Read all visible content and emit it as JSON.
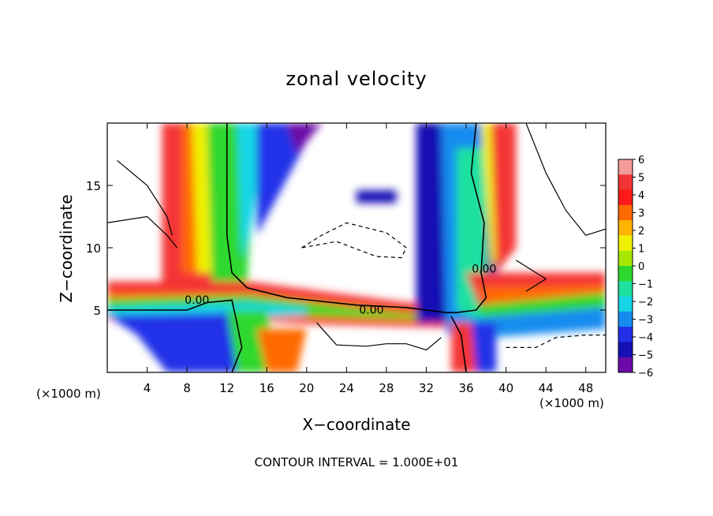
{
  "chart_data": {
    "type": "heatmap",
    "title": "zonal velocity",
    "xlabel": "X−coordinate",
    "ylabel": "Z−coordinate",
    "x_unit_left": "(×1000 m)",
    "x_unit_right": "(×1000 m)",
    "footnote": "CONTOUR INTERVAL = 1.000E+01",
    "xlim": [
      0,
      50
    ],
    "ylim": [
      0,
      20
    ],
    "xticks": [
      4,
      8,
      12,
      16,
      20,
      24,
      28,
      32,
      36,
      40,
      44,
      48
    ],
    "yticks": [
      5,
      10,
      15
    ],
    "colorbar": {
      "ticks": [
        6,
        5,
        4,
        3,
        2,
        1,
        0,
        -1,
        -2,
        -3,
        -4,
        -5,
        -6
      ],
      "tick_labels": [
        "6",
        "5",
        "4",
        "3",
        "2",
        "1",
        "0",
        "−1",
        "−2",
        "−3",
        "−4",
        "−5",
        "−6"
      ],
      "colors": [
        "#f59a9a",
        "#f43434",
        "#ff1a1a",
        "#ff6a00",
        "#ffb400",
        "#f0f000",
        "#a8e800",
        "#2ed82e",
        "#1ee0a0",
        "#16d6e6",
        "#168cf0",
        "#2230e8",
        "#1410b4",
        "#6b0aa8"
      ]
    },
    "contour_labels": [
      {
        "text": "0.00",
        "x": 9.0,
        "z": 5.5
      },
      {
        "text": "0.00",
        "x": 26.5,
        "z": 4.7
      },
      {
        "text": "0.00",
        "x": 37.8,
        "z": 8.0
      }
    ]
  }
}
